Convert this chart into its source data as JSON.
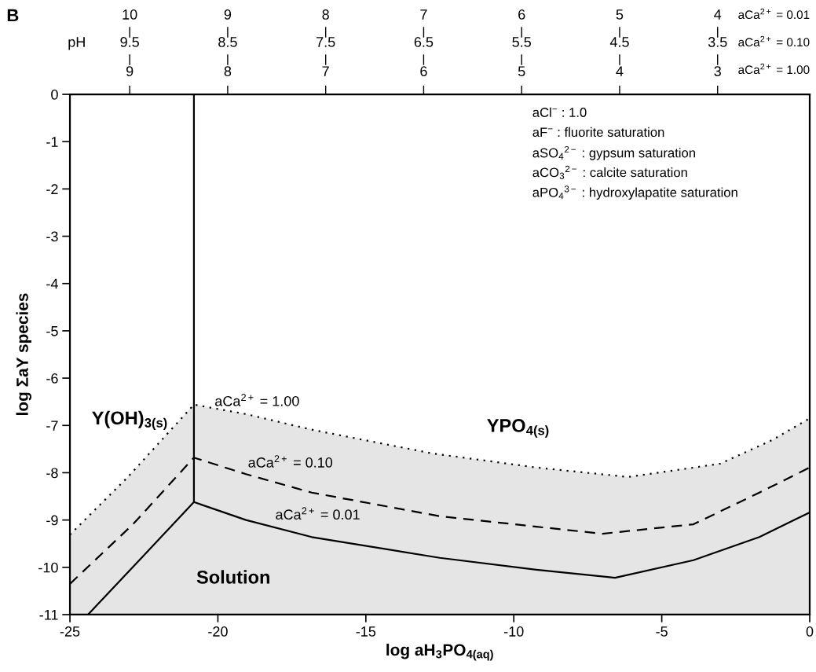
{
  "chart_data": {
    "type": "line",
    "xlabel": "log aH$_{3}$PO$_{4(aq)}$",
    "ylabel": "log ΣaY species",
    "xlim": [
      -25,
      0
    ],
    "xticks": [
      -25,
      -20,
      -15,
      -10,
      -5,
      0
    ],
    "ylim": [
      -11,
      0
    ],
    "yticks": [
      0,
      -1,
      -2,
      -3,
      -4,
      -5,
      -6,
      -7,
      -8,
      -9,
      -10,
      -11
    ],
    "x2lim": [
      9.61,
      2.06
    ],
    "x2ticks": [
      9,
      8,
      7,
      6,
      5,
      4,
      3
    ],
    "x2label": "aCa$^{2+}$ = 1.00",
    "grid": false,
    "legend": false,
    "marker": "none",
    "series": [
      {
        "color": "#000000",
        "line_style": "dotted",
        "x": [
          -25,
          -23.04,
          -20.81,
          -19.05,
          -16.83,
          -12.77,
          -9.24,
          -6.13,
          -3.03,
          -1.27,
          0
        ],
        "values": [
          -9.31,
          -8.09,
          -6.56,
          -6.76,
          -7.09,
          -7.59,
          -7.89,
          -8.09,
          -7.81,
          -7.31,
          -6.85
        ],
        "lower": [
          -11,
          -11,
          -11,
          -11,
          -11,
          -11,
          -11,
          -11,
          -11,
          -11,
          -11
        ],
        "upper": [
          -9.31,
          -8.09,
          -6.56,
          -6.76,
          -7.09,
          -7.59,
          -7.89,
          -8.09,
          -7.81,
          -7.31,
          -6.85
        ]
      },
      {
        "color": "#000000",
        "line_style": "dashed",
        "x": [
          -25,
          -22.87,
          -20.81,
          -19.05,
          -16.83,
          -12.5,
          -9.24,
          -7.01,
          -3.93,
          -1.7,
          0
        ],
        "values": [
          -10.35,
          -9.09,
          -7.68,
          -8.03,
          -8.42,
          -8.92,
          -9.14,
          -9.29,
          -9.09,
          -8.42,
          -7.89
        ]
      },
      {
        "color": "#000000",
        "line_style": "solid",
        "x": [
          -24.39,
          -22.58,
          -20.81,
          -19.05,
          -16.83,
          -12.5,
          -9.24,
          -6.58,
          -3.93,
          -1.7,
          0
        ],
        "values": [
          -11,
          -9.8,
          -8.62,
          -9.0,
          -9.36,
          -9.8,
          -10.05,
          -10.22,
          -9.85,
          -9.36,
          -8.84
        ]
      },
      {
        "color": "#000000",
        "line_style": "solid",
        "x": [
          -20.81,
          -20.81
        ],
        "values": [
          -8.62,
          0
        ]
      }
    ],
    "annotations": [
      "B",
      "aCl$^{−}$ : 1.0",
      "aF$^{−}$ : fluorite saturation",
      "aSO$_{4}$$^{2−}$ : gypsum saturation",
      "aCO$_{3}$$^{2−}$ : calcite saturation",
      "aPO$_{4}$$^{3−}$ : hydroxylapatite saturation",
      "Y(OH)$_{3(s)}$",
      "YPO$_{4(s)}$",
      "Solution",
      "aCa$^{2+}$ = 1.00",
      "aCa$^{2+}$ = 0.10",
      "aCa$^{2+}$ = 0.01",
      "pH",
      "aCa$^{2+}$ = 0.01",
      "aCa$^{2+}$ = 0.10",
      "10",
      "9",
      "8",
      "7",
      "6",
      "5",
      "4",
      "9.5",
      "8.5",
      "7.5",
      "6.5",
      "5.5",
      "4.5",
      "3.5"
    ]
  }
}
